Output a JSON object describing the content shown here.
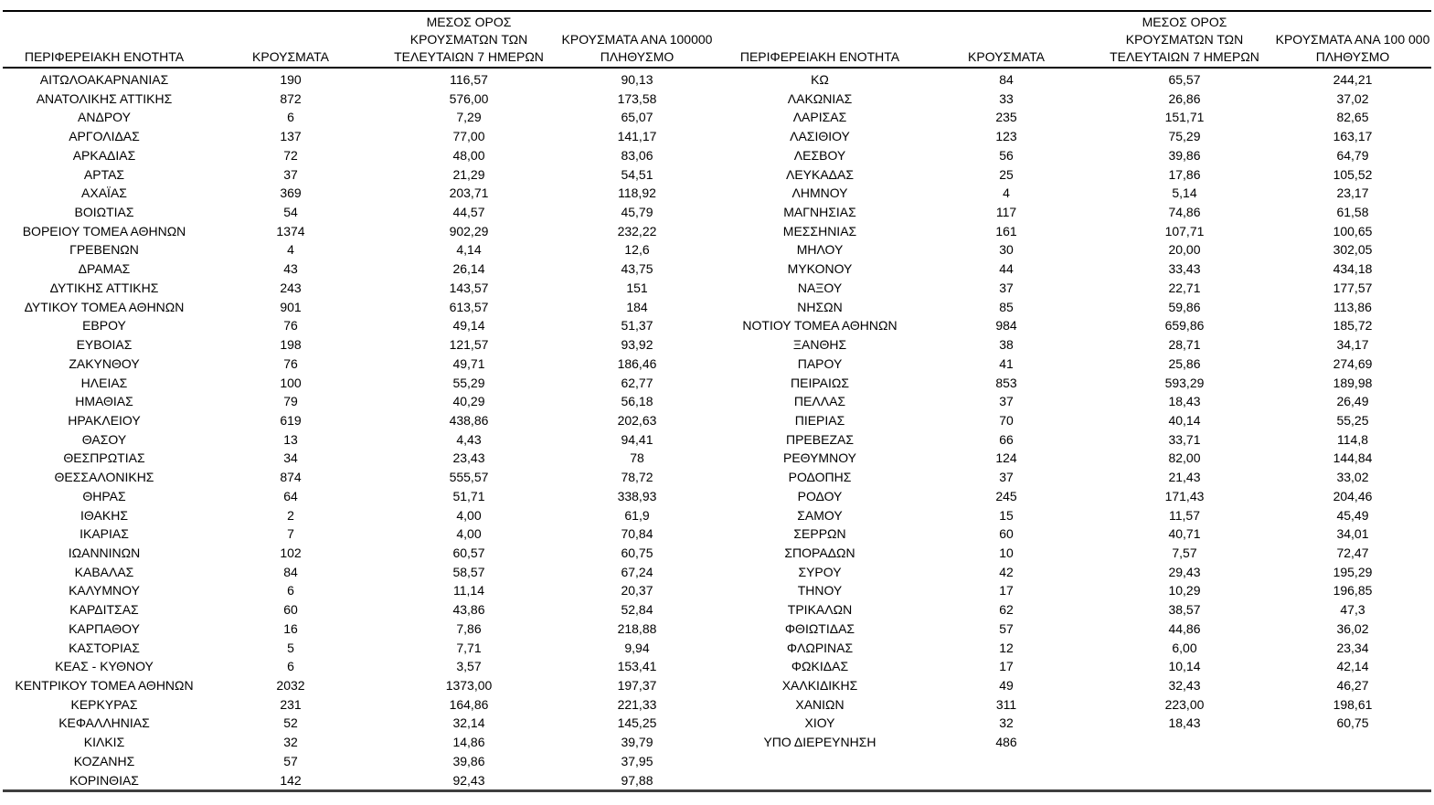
{
  "page": {
    "background_color": "#ffffff",
    "text_color": "#000000",
    "rule_color": "#000000",
    "bottom_rule_color": "#3f3f3f"
  },
  "headers": {
    "region": "ΠΕΡΙΦΕΡΕΙΑΚΗ ΕΝΟΤΗΤΑ",
    "cases": "ΚΡΟΥΣΜΑΤΑ",
    "avg7": "ΜΕΣΟΣ ΟΡΟΣ\nΚΡΟΥΣΜΑΤΩΝ ΤΩΝ\nΤΕΛΕΥΤΑΙΩΝ 7 ΗΜΕΡΩΝ",
    "per100k_left": "ΚΡΟΥΣΜΑΤΑ ΑΝΑ 100000\nΠΛΗΘΥΣΜΟ",
    "per100k_right": "ΚΡΟΥΣΜΑΤΑ ΑΝΑ 100 000\nΠΛΗΘΥΣΜΟ"
  },
  "left_table": {
    "rows": [
      [
        "ΑΙΤΩΛΟΑΚΑΡΝΑΝΙΑΣ",
        "190",
        "116,57",
        "90,13"
      ],
      [
        "ΑΝΑΤΟΛΙΚΗΣ ΑΤΤΙΚΗΣ",
        "872",
        "576,00",
        "173,58"
      ],
      [
        "ΑΝΔΡΟΥ",
        "6",
        "7,29",
        "65,07"
      ],
      [
        "ΑΡΓΟΛΙΔΑΣ",
        "137",
        "77,00",
        "141,17"
      ],
      [
        "ΑΡΚΑΔΙΑΣ",
        "72",
        "48,00",
        "83,06"
      ],
      [
        "ΑΡΤΑΣ",
        "37",
        "21,29",
        "54,51"
      ],
      [
        "ΑΧΑΪΑΣ",
        "369",
        "203,71",
        "118,92"
      ],
      [
        "ΒΟΙΩΤΙΑΣ",
        "54",
        "44,57",
        "45,79"
      ],
      [
        "ΒΟΡΕΙΟΥ ΤΟΜΕΑ ΑΘΗΝΩΝ",
        "1374",
        "902,29",
        "232,22"
      ],
      [
        "ΓΡΕΒΕΝΩΝ",
        "4",
        "4,14",
        "12,6"
      ],
      [
        "ΔΡΑΜΑΣ",
        "43",
        "26,14",
        "43,75"
      ],
      [
        "ΔΥΤΙΚΗΣ ΑΤΤΙΚΗΣ",
        "243",
        "143,57",
        "151"
      ],
      [
        "ΔΥΤΙΚΟΥ ΤΟΜΕΑ ΑΘΗΝΩΝ",
        "901",
        "613,57",
        "184"
      ],
      [
        "ΕΒΡΟΥ",
        "76",
        "49,14",
        "51,37"
      ],
      [
        "ΕΥΒΟΙΑΣ",
        "198",
        "121,57",
        "93,92"
      ],
      [
        "ΖΑΚΥΝΘΟΥ",
        "76",
        "49,71",
        "186,46"
      ],
      [
        "ΗΛΕΙΑΣ",
        "100",
        "55,29",
        "62,77"
      ],
      [
        "ΗΜΑΘΙΑΣ",
        "79",
        "40,29",
        "56,18"
      ],
      [
        "ΗΡΑΚΛΕΙΟΥ",
        "619",
        "438,86",
        "202,63"
      ],
      [
        "ΘΑΣΟΥ",
        "13",
        "4,43",
        "94,41"
      ],
      [
        "ΘΕΣΠΡΩΤΙΑΣ",
        "34",
        "23,43",
        "78"
      ],
      [
        "ΘΕΣΣΑΛΟΝΙΚΗΣ",
        "874",
        "555,57",
        "78,72"
      ],
      [
        "ΘΗΡΑΣ",
        "64",
        "51,71",
        "338,93"
      ],
      [
        "ΙΘΑΚΗΣ",
        "2",
        "4,00",
        "61,9"
      ],
      [
        "ΙΚΑΡΙΑΣ",
        "7",
        "4,00",
        "70,84"
      ],
      [
        "ΙΩΑΝΝΙΝΩΝ",
        "102",
        "60,57",
        "60,75"
      ],
      [
        "ΚΑΒΑΛΑΣ",
        "84",
        "58,57",
        "67,24"
      ],
      [
        "ΚΑΛΥΜΝΟΥ",
        "6",
        "11,14",
        "20,37"
      ],
      [
        "ΚΑΡΔΙΤΣΑΣ",
        "60",
        "43,86",
        "52,84"
      ],
      [
        "ΚΑΡΠΑΘΟΥ",
        "16",
        "7,86",
        "218,88"
      ],
      [
        "ΚΑΣΤΟΡΙΑΣ",
        "5",
        "7,71",
        "9,94"
      ],
      [
        "ΚΕΑΣ - ΚΥΘΝΟΥ",
        "6",
        "3,57",
        "153,41"
      ],
      [
        "ΚΕΝΤΡΙΚΟΥ ΤΟΜΕΑ ΑΘΗΝΩΝ",
        "2032",
        "1373,00",
        "197,37"
      ],
      [
        "ΚΕΡΚΥΡΑΣ",
        "231",
        "164,86",
        "221,33"
      ],
      [
        "ΚΕΦΑΛΛΗΝΙΑΣ",
        "52",
        "32,14",
        "145,25"
      ],
      [
        "ΚΙΛΚΙΣ",
        "32",
        "14,86",
        "39,79"
      ],
      [
        "ΚΟΖΑΝΗΣ",
        "57",
        "39,86",
        "37,95"
      ],
      [
        "ΚΟΡΙΝΘΙΑΣ",
        "142",
        "92,43",
        "97,88"
      ]
    ]
  },
  "right_table": {
    "rows": [
      [
        "ΚΩ",
        "84",
        "65,57",
        "244,21"
      ],
      [
        "ΛΑΚΩΝΙΑΣ",
        "33",
        "26,86",
        "37,02"
      ],
      [
        "ΛΑΡΙΣΑΣ",
        "235",
        "151,71",
        "82,65"
      ],
      [
        "ΛΑΣΙΘΙΟΥ",
        "123",
        "75,29",
        "163,17"
      ],
      [
        "ΛΕΣΒΟΥ",
        "56",
        "39,86",
        "64,79"
      ],
      [
        "ΛΕΥΚΑΔΑΣ",
        "25",
        "17,86",
        "105,52"
      ],
      [
        "ΛΗΜΝΟΥ",
        "4",
        "5,14",
        "23,17"
      ],
      [
        "ΜΑΓΝΗΣΙΑΣ",
        "117",
        "74,86",
        "61,58"
      ],
      [
        "ΜΕΣΣΗΝΙΑΣ",
        "161",
        "107,71",
        "100,65"
      ],
      [
        "ΜΗΛΟΥ",
        "30",
        "20,00",
        "302,05"
      ],
      [
        "ΜΥΚΟΝΟΥ",
        "44",
        "33,43",
        "434,18"
      ],
      [
        "ΝΑΞΟΥ",
        "37",
        "22,71",
        "177,57"
      ],
      [
        "ΝΗΣΩΝ",
        "85",
        "59,86",
        "113,86"
      ],
      [
        "ΝΟΤΙΟΥ ΤΟΜΕΑ ΑΘΗΝΩΝ",
        "984",
        "659,86",
        "185,72"
      ],
      [
        "ΞΑΝΘΗΣ",
        "38",
        "28,71",
        "34,17"
      ],
      [
        "ΠΑΡΟΥ",
        "41",
        "25,86",
        "274,69"
      ],
      [
        "ΠΕΙΡΑΙΩΣ",
        "853",
        "593,29",
        "189,98"
      ],
      [
        "ΠΕΛΛΑΣ",
        "37",
        "18,43",
        "26,49"
      ],
      [
        "ΠΙΕΡΙΑΣ",
        "70",
        "40,14",
        "55,25"
      ],
      [
        "ΠΡΕΒΕΖΑΣ",
        "66",
        "33,71",
        "114,8"
      ],
      [
        "ΡΕΘΥΜΝΟΥ",
        "124",
        "82,00",
        "144,84"
      ],
      [
        "ΡΟΔΟΠΗΣ",
        "37",
        "21,43",
        "33,02"
      ],
      [
        "ΡΟΔΟΥ",
        "245",
        "171,43",
        "204,46"
      ],
      [
        "ΣΑΜΟΥ",
        "15",
        "11,57",
        "45,49"
      ],
      [
        "ΣΕΡΡΩΝ",
        "60",
        "40,71",
        "34,01"
      ],
      [
        "ΣΠΟΡΑΔΩΝ",
        "10",
        "7,57",
        "72,47"
      ],
      [
        "ΣΥΡΟΥ",
        "42",
        "29,43",
        "195,29"
      ],
      [
        "ΤΗΝΟΥ",
        "17",
        "10,29",
        "196,85"
      ],
      [
        "ΤΡΙΚΑΛΩΝ",
        "62",
        "38,57",
        "47,3"
      ],
      [
        "ΦΘΙΩΤΙΔΑΣ",
        "57",
        "44,86",
        "36,02"
      ],
      [
        "ΦΛΩΡΙΝΑΣ",
        "12",
        "6,00",
        "23,34"
      ],
      [
        "ΦΩΚΙΔΑΣ",
        "17",
        "10,14",
        "42,14"
      ],
      [
        "ΧΑΛΚΙΔΙΚΗΣ",
        "49",
        "32,43",
        "46,27"
      ],
      [
        "ΧΑΝΙΩΝ",
        "311",
        "223,00",
        "198,61"
      ],
      [
        "ΧΙΟΥ",
        "32",
        "18,43",
        "60,75"
      ],
      [
        "ΥΠΟ ΔΙΕΡΕΥΝΗΣΗ",
        "486",
        "",
        ""
      ]
    ]
  }
}
